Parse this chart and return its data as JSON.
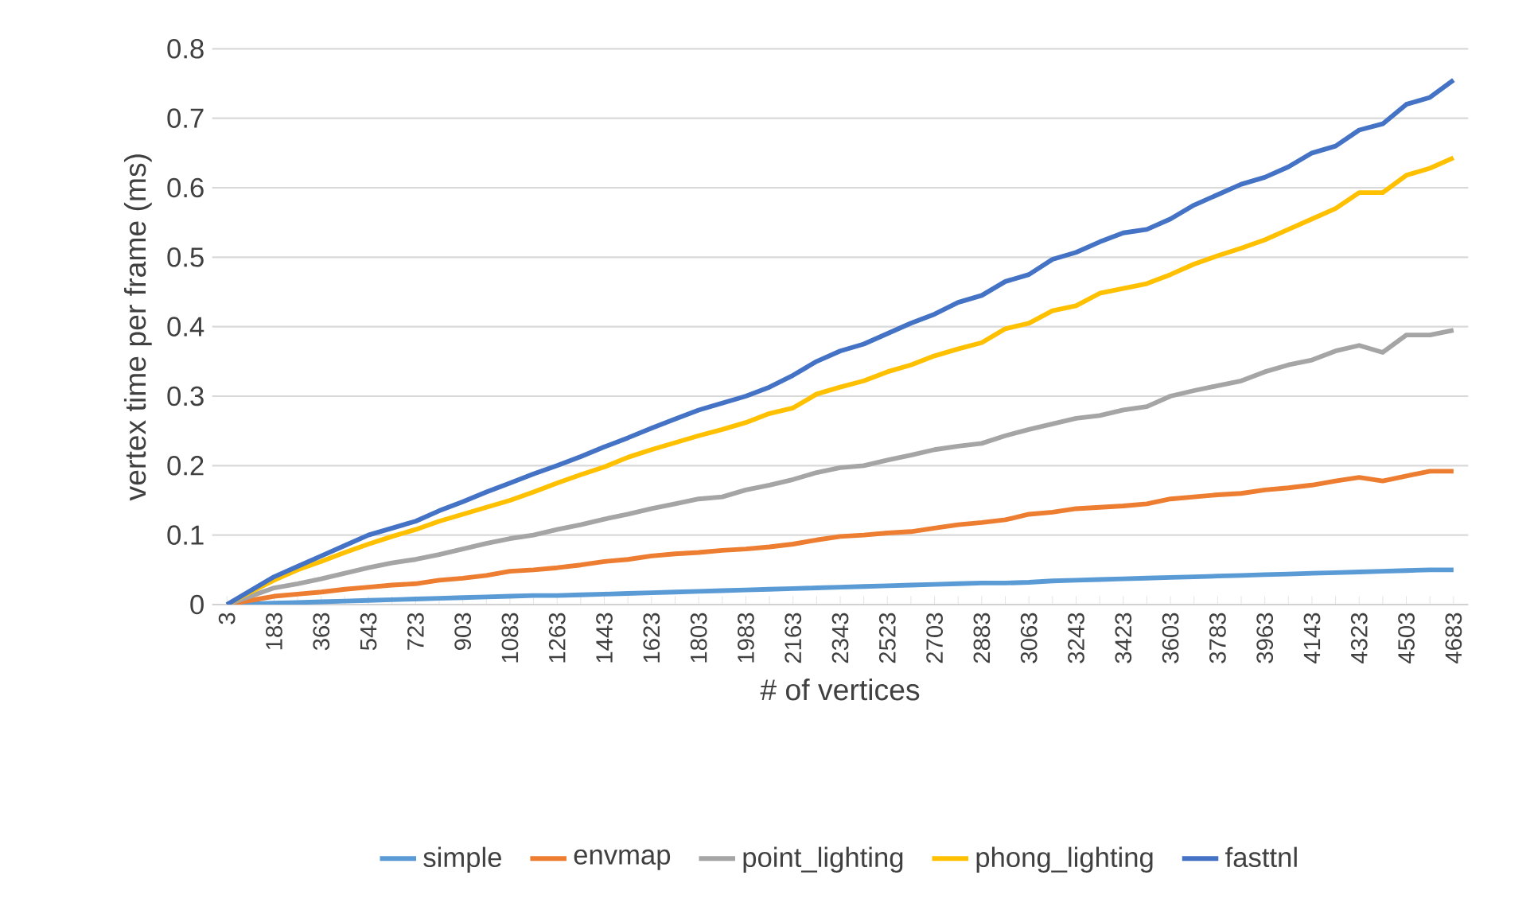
{
  "chart_data": {
    "type": "line",
    "xlabel": "# of vertices",
    "ylabel": "vertex time per frame (ms)",
    "categories": [
      "3",
      null,
      "183",
      null,
      "363",
      null,
      "543",
      null,
      "723",
      null,
      "903",
      null,
      "1083",
      null,
      "1263",
      null,
      "1443",
      null,
      "1623",
      null,
      "1803",
      null,
      "1983",
      null,
      "2163",
      null,
      "2343",
      null,
      "2523",
      null,
      "2703",
      null,
      "2883",
      null,
      "3063",
      null,
      "3243",
      null,
      "3423",
      null,
      "3603",
      null,
      "3783",
      null,
      "3963",
      null,
      "4143",
      null,
      "4323",
      null,
      "4503",
      null,
      "4683"
    ],
    "series": [
      {
        "name": "simple",
        "color": "#5b9bd5",
        "values": [
          0,
          0.001,
          0.002,
          0.003,
          0.004,
          0.005,
          0.006,
          0.007,
          0.008,
          0.009,
          0.01,
          0.011,
          0.012,
          0.013,
          0.013,
          0.014,
          0.015,
          0.016,
          0.017,
          0.018,
          0.019,
          0.02,
          0.021,
          0.022,
          0.023,
          0.024,
          0.025,
          0.026,
          0.027,
          0.028,
          0.029,
          0.03,
          0.031,
          0.031,
          0.032,
          0.034,
          0.035,
          0.036,
          0.037,
          0.038,
          0.039,
          0.04,
          0.041,
          0.042,
          0.043,
          0.044,
          0.045,
          0.046,
          0.047,
          0.048,
          0.049,
          0.05,
          0.05
        ]
      },
      {
        "name": "envmap",
        "color": "#ed7d31",
        "values": [
          0,
          0.006,
          0.012,
          0.015,
          0.018,
          0.022,
          0.025,
          0.028,
          0.03,
          0.035,
          0.038,
          0.042,
          0.048,
          0.05,
          0.053,
          0.057,
          0.062,
          0.065,
          0.07,
          0.073,
          0.075,
          0.078,
          0.08,
          0.083,
          0.087,
          0.093,
          0.098,
          0.1,
          0.103,
          0.105,
          0.11,
          0.115,
          0.118,
          0.122,
          0.13,
          0.133,
          0.138,
          0.14,
          0.142,
          0.145,
          0.152,
          0.155,
          0.158,
          0.16,
          0.165,
          0.168,
          0.172,
          0.178,
          0.183,
          0.178,
          0.185,
          0.192,
          0.192
        ]
      },
      {
        "name": "point_lighting",
        "color": "#a5a5a5",
        "values": [
          0,
          0.012,
          0.024,
          0.03,
          0.037,
          0.045,
          0.053,
          0.06,
          0.065,
          0.072,
          0.08,
          0.088,
          0.095,
          0.1,
          0.108,
          0.115,
          0.123,
          0.13,
          0.138,
          0.145,
          0.152,
          0.155,
          0.165,
          0.172,
          0.18,
          0.19,
          0.197,
          0.2,
          0.208,
          0.215,
          0.223,
          0.228,
          0.232,
          0.243,
          0.252,
          0.26,
          0.268,
          0.272,
          0.28,
          0.285,
          0.3,
          0.308,
          0.315,
          0.322,
          0.335,
          0.345,
          0.352,
          0.365,
          0.373,
          0.363,
          0.388,
          0.388,
          0.395
        ]
      },
      {
        "name": "phong_lighting",
        "color": "#ffc000",
        "values": [
          0,
          0.018,
          0.035,
          0.05,
          0.062,
          0.075,
          0.087,
          0.098,
          0.108,
          0.12,
          0.13,
          0.14,
          0.15,
          0.162,
          0.175,
          0.187,
          0.198,
          0.212,
          0.223,
          0.233,
          0.243,
          0.252,
          0.262,
          0.275,
          0.283,
          0.303,
          0.313,
          0.322,
          0.335,
          0.345,
          0.358,
          0.368,
          0.377,
          0.397,
          0.405,
          0.423,
          0.43,
          0.448,
          0.455,
          0.462,
          0.475,
          0.49,
          0.502,
          0.513,
          0.525,
          0.54,
          0.555,
          0.57,
          0.593,
          0.593,
          0.618,
          0.628,
          0.643
        ]
      },
      {
        "name": "fasttnl",
        "color": "#4472c4",
        "values": [
          0,
          0.02,
          0.04,
          0.055,
          0.07,
          0.085,
          0.1,
          0.11,
          0.12,
          0.135,
          0.148,
          0.162,
          0.175,
          0.188,
          0.2,
          0.213,
          0.227,
          0.24,
          0.254,
          0.267,
          0.28,
          0.29,
          0.3,
          0.313,
          0.33,
          0.35,
          0.365,
          0.375,
          0.39,
          0.405,
          0.418,
          0.435,
          0.445,
          0.465,
          0.475,
          0.497,
          0.507,
          0.522,
          0.535,
          0.54,
          0.555,
          0.575,
          0.59,
          0.605,
          0.615,
          0.63,
          0.65,
          0.66,
          0.683,
          0.692,
          0.72,
          0.73,
          0.755
        ]
      }
    ],
    "ylim": [
      0,
      0.8
    ],
    "yticks": [
      0,
      0.1,
      0.2,
      0.3,
      0.4,
      0.5,
      0.6,
      0.7,
      0.8
    ],
    "grid": "y",
    "legend": "bottom",
    "marker": "none"
  }
}
